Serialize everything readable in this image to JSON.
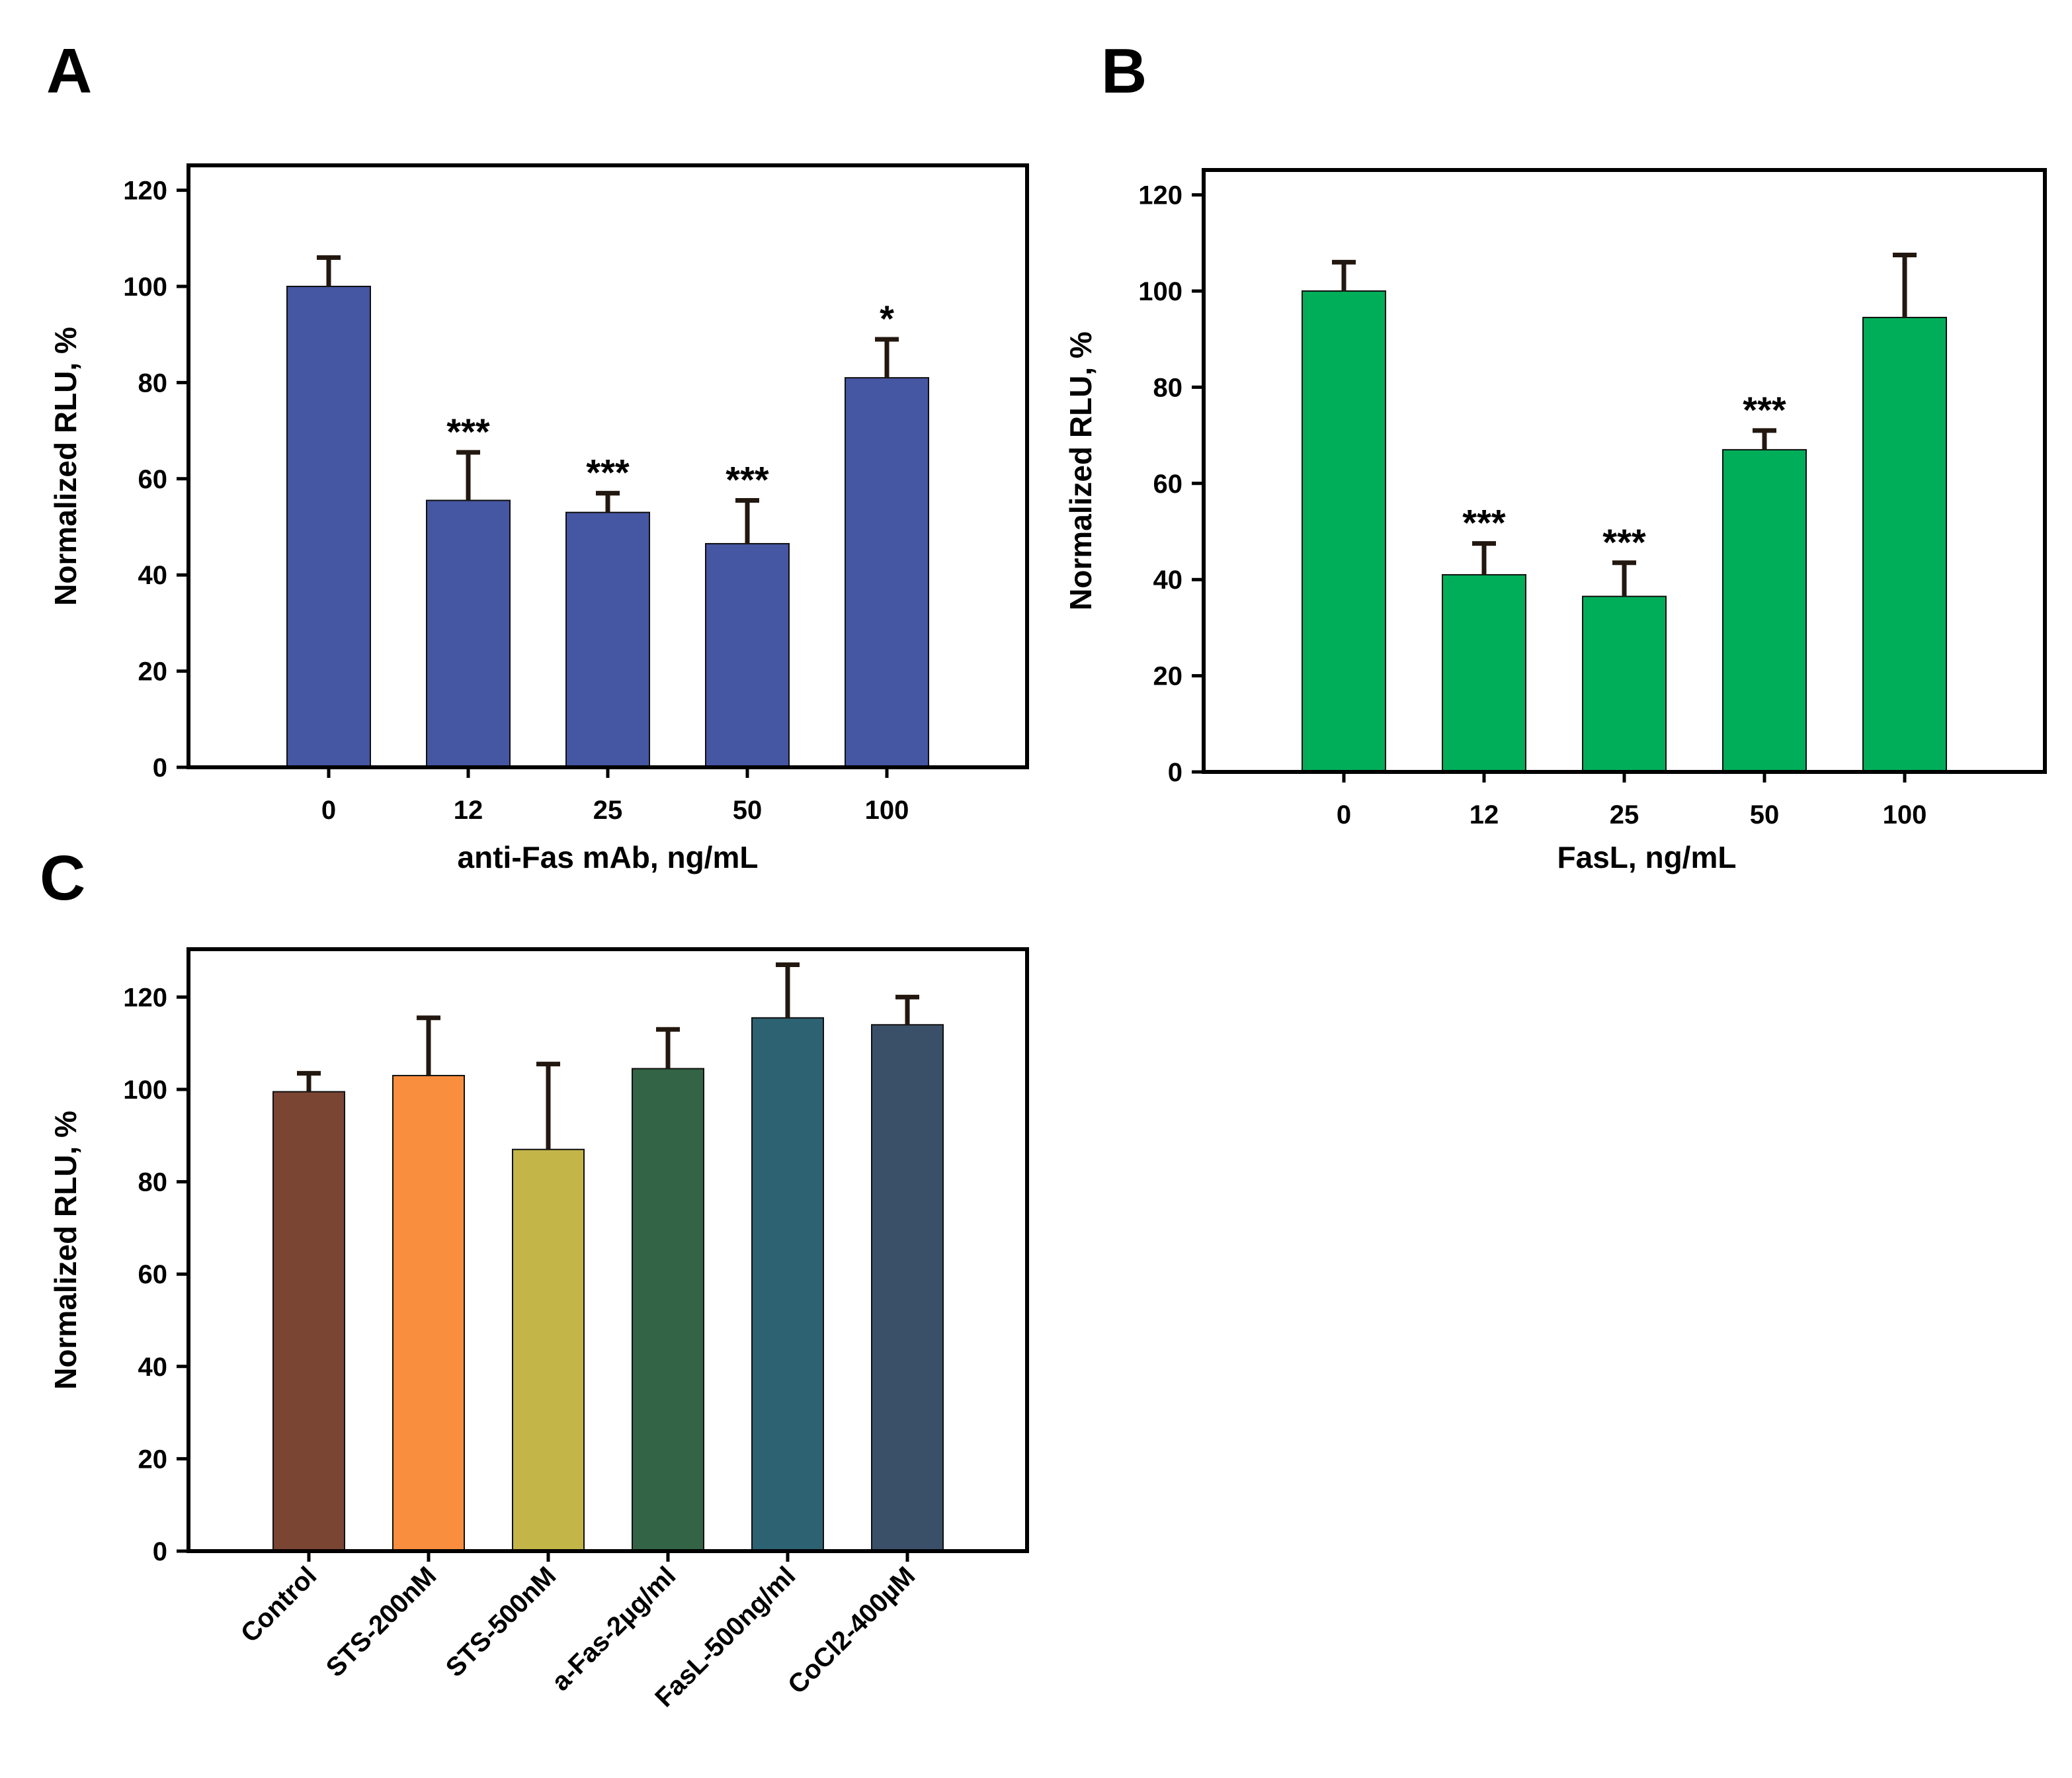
{
  "chart_data": [
    {
      "type": "bar",
      "panel": "A",
      "categories": [
        "0",
        "12",
        "25",
        "50",
        "100"
      ],
      "values": [
        100,
        55.5,
        53,
        46.5,
        81
      ],
      "errors": [
        6,
        10,
        4,
        9,
        8
      ],
      "significance": [
        "",
        "***",
        "***",
        "***",
        "*"
      ],
      "colors": [
        "#4556a2",
        "#4556a2",
        "#4556a2",
        "#4556a2",
        "#4556a2"
      ],
      "title": "",
      "xlabel": "anti-Fas mAb, ng/mL",
      "ylabel": "Normalized RLU, %",
      "ylim": [
        0,
        120
      ],
      "yticks": [
        0,
        20,
        40,
        60,
        80,
        100,
        120
      ]
    },
    {
      "type": "bar",
      "panel": "B",
      "categories": [
        "0",
        "12",
        "25",
        "50",
        "100"
      ],
      "values": [
        100,
        41,
        36.5,
        67,
        94.5
      ],
      "errors": [
        6,
        6.5,
        7,
        4,
        13
      ],
      "significance": [
        "",
        "***",
        "***",
        "***",
        ""
      ],
      "colors": [
        "#00ae59",
        "#00ae59",
        "#00ae59",
        "#00ae59",
        "#00ae59"
      ],
      "title": "",
      "xlabel": "FasL, ng/mL",
      "ylabel": "Normalized RLU, %",
      "ylim": [
        0,
        120
      ],
      "yticks": [
        0,
        20,
        40,
        60,
        80,
        100,
        120
      ]
    },
    {
      "type": "bar",
      "panel": "C",
      "categories": [
        "Control",
        "STS-200nM",
        "STS-500nM",
        "a-Fas-2µg/ml",
        "FasL-500ng/ml",
        "CoCl2-400µM"
      ],
      "values": [
        99.5,
        103,
        87,
        104.5,
        115.5,
        114
      ],
      "errors": [
        4,
        12.5,
        18.5,
        8.5,
        11.5,
        6
      ],
      "significance": [
        "",
        "",
        "",
        "",
        "",
        ""
      ],
      "colors": [
        "#7b4533",
        "#fa8e3f",
        "#c3b548",
        "#326445",
        "#2d6273",
        "#3a5069"
      ],
      "title": "",
      "xlabel": "",
      "ylabel": "Normalized RLU, %",
      "ylim": [
        0,
        130
      ],
      "yticks": [
        0,
        20,
        40,
        60,
        80,
        100,
        120
      ]
    }
  ]
}
